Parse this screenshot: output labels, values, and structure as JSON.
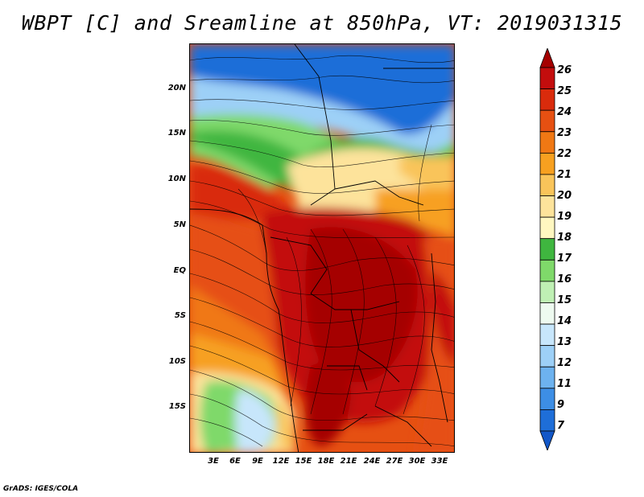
{
  "title": "WBPT [C] and Sreamline at 850hPa, VT: 2019031315",
  "credit": "GrADS: IGES/COLA",
  "map": {
    "region": "Central and Southern Africa",
    "latitude_labels": [
      "20N",
      "15N",
      "10N",
      "5N",
      "EQ",
      "5S",
      "10S",
      "15S"
    ],
    "longitude_labels": [
      "3E",
      "6E",
      "9E",
      "12E",
      "15E",
      "18E",
      "21E",
      "24E",
      "27E",
      "30E",
      "33E"
    ]
  },
  "colorbar": {
    "labels": [
      "26",
      "25",
      "24",
      "23",
      "22",
      "21",
      "20",
      "19",
      "18",
      "17",
      "16",
      "15",
      "14",
      "13",
      "12",
      "11",
      "9",
      "7"
    ],
    "colors": [
      "#a50000",
      "#c30d0d",
      "#d92b0c",
      "#e65012",
      "#f07814",
      "#f7a020",
      "#f9c45a",
      "#fde39b",
      "#fff7c0",
      "#3fb63f",
      "#7fd96a",
      "#bff0b4",
      "#eefaf0",
      "#c7e6fb",
      "#9dd0f7",
      "#6db2ef",
      "#3d8ee5",
      "#1e6ed8",
      "#1257c8"
    ]
  }
}
